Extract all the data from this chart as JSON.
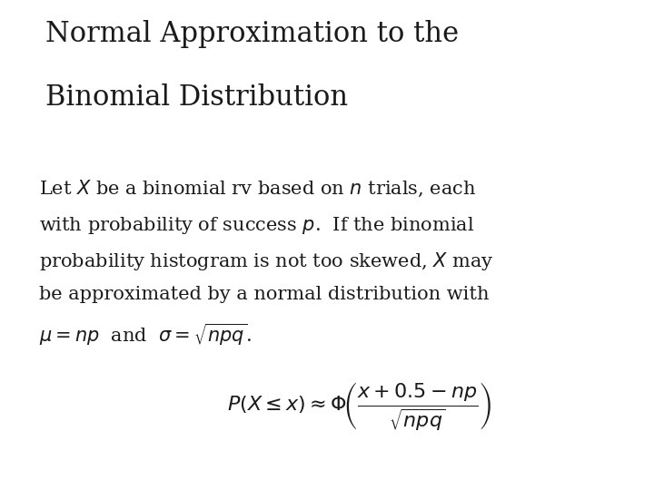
{
  "background_color": "#ffffff",
  "title_line1": "Normal Approximation to the",
  "title_line2": "Binomial Distribution",
  "title_fontsize": 22,
  "title_font": "serif",
  "body_fontsize": 15,
  "body_font": "serif",
  "body_text_line1": "Let $X$ be a binomial rv based on $n$ trials, each",
  "body_text_line2": "with probability of success $p$.  If the binomial",
  "body_text_line3": "probability histogram is not too skewed, $X$ may",
  "body_text_line4": "be approximated by a normal distribution with",
  "body_text_line5": "$\\mu = np$  and  $\\sigma = \\sqrt{npq}$.",
  "formula": "$P(X \\leq x) \\approx \\Phi\\!\\left(\\dfrac{x + 0.5 - np}{\\sqrt{npq}}\\right)$",
  "formula_fontsize": 16,
  "text_color": "#1a1a1a"
}
